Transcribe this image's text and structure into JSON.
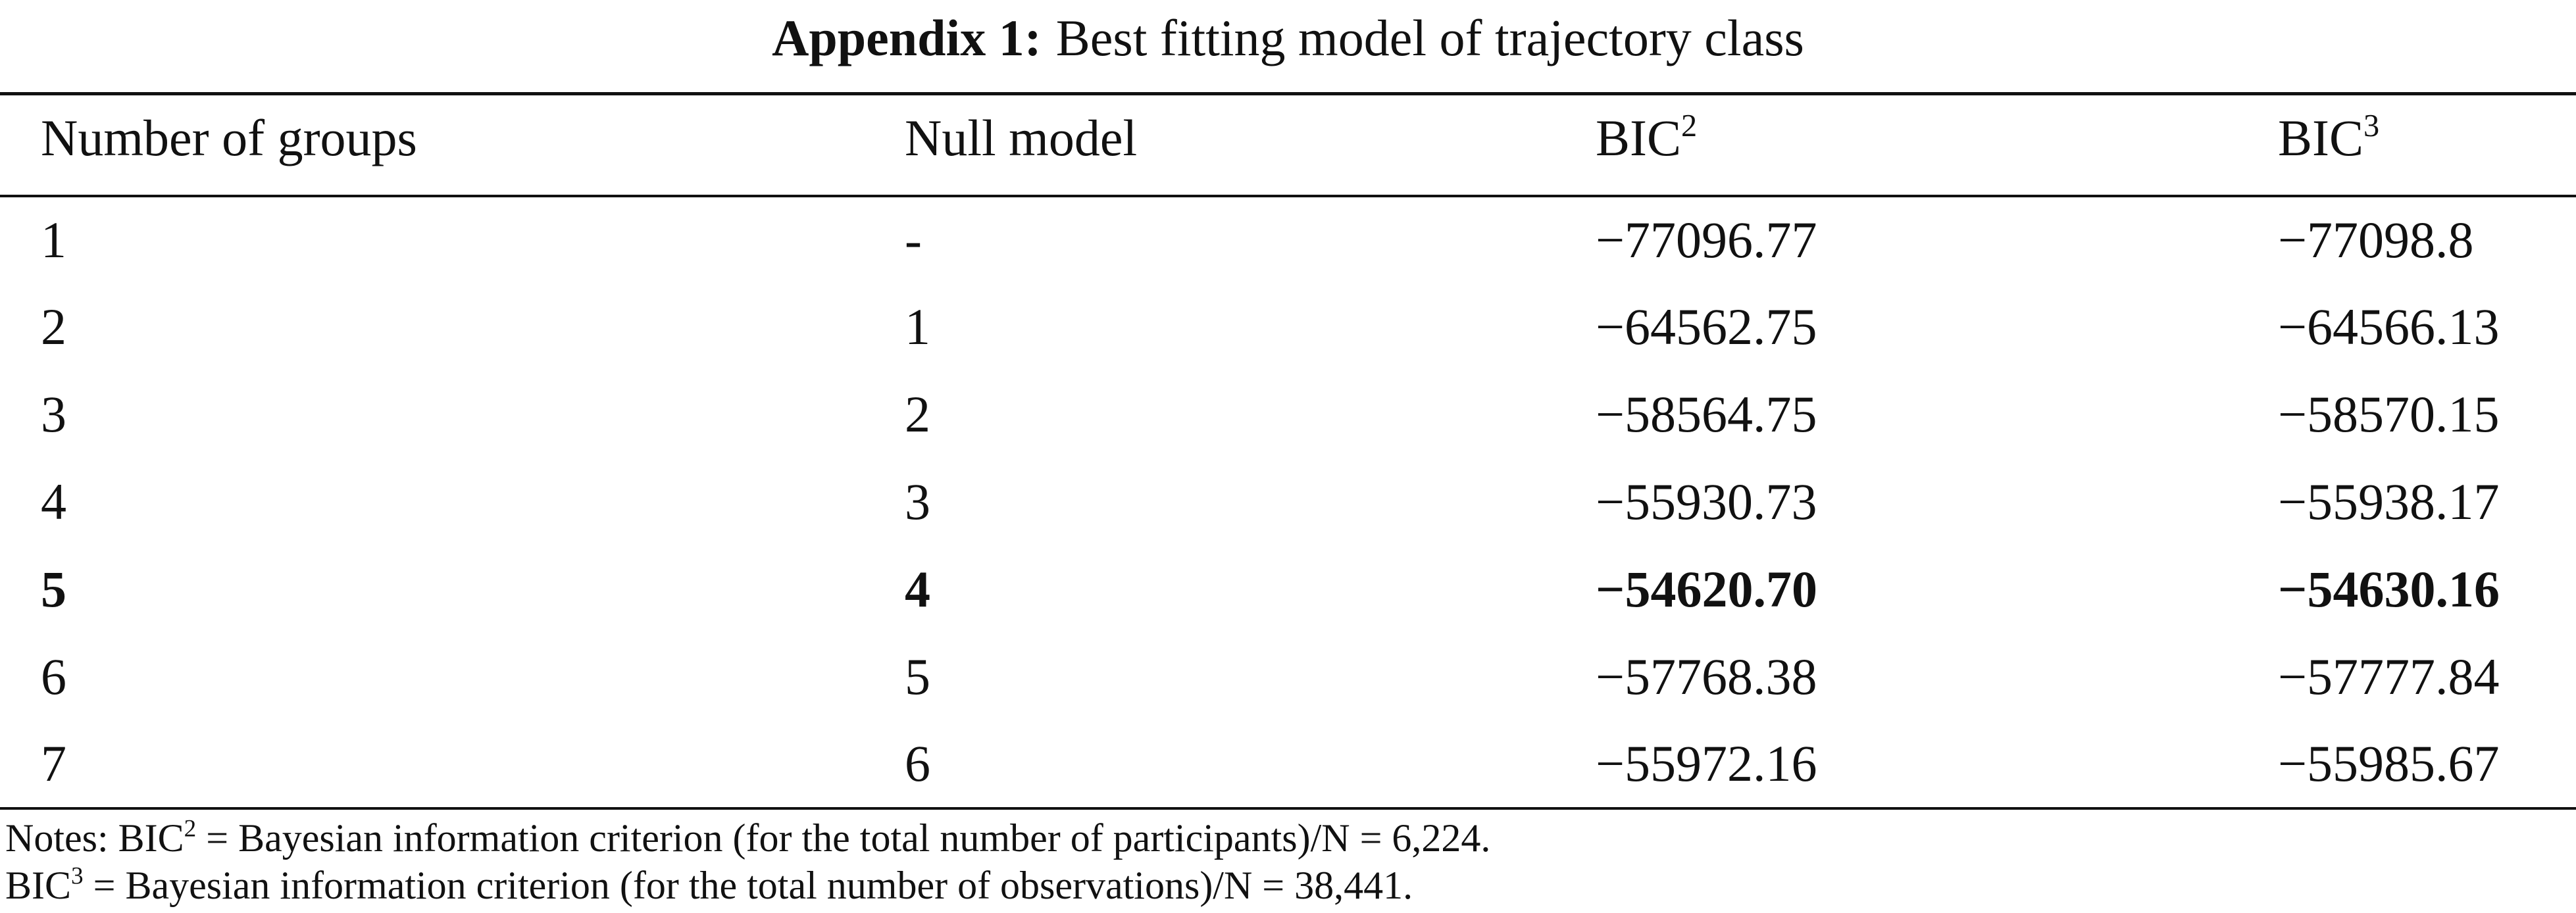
{
  "title": {
    "label": "Appendix 1:",
    "text": "Best fitting model of trajectory class"
  },
  "table": {
    "header": [
      {
        "text": "Number of groups"
      },
      {
        "text": "Null model"
      },
      {
        "text": "BIC",
        "sup": "2"
      },
      {
        "text": "BIC",
        "sup": "3"
      }
    ],
    "rows": [
      [
        "1",
        "-",
        "−77096.77",
        "−77098.8"
      ],
      [
        "2",
        "1",
        "−64562.75",
        "−64566.13"
      ],
      [
        "3",
        "2",
        "−58564.75",
        "−58570.15"
      ],
      [
        "4",
        "3",
        "−55930.73",
        "−55938.17"
      ],
      [
        "5",
        "4",
        "−54620.70",
        "−54630.16"
      ],
      [
        "6",
        "5",
        "−57768.38",
        "−57777.84"
      ],
      [
        "7",
        "6",
        "−55972.16",
        "−55985.67"
      ]
    ]
  },
  "notes": [
    {
      "text": "Notes: BIC",
      "sup": "2",
      "rest": " = Bayesian information criterion (for the total number of participants)/N = 6,224."
    },
    {
      "text": "BIC",
      "sup": "3",
      "rest": " = Bayesian information criterion (for the total number of observations)/N = 38,441."
    }
  ]
}
